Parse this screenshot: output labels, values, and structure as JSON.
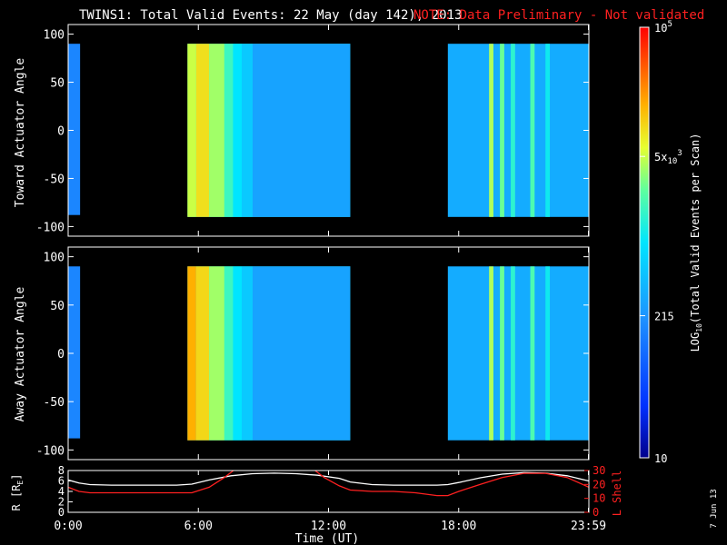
{
  "header": {
    "title": "TWINS1: Total Valid Events: 22 May (day 142), 2013",
    "note": "NOTE: Data Preliminary - Not validated"
  },
  "footer": {
    "date_stamp": "7 Jun 13"
  },
  "colors": {
    "background": "#000000",
    "axes": "#ffffff",
    "note": "#ff2020",
    "r_line": "#ffffff",
    "lshell_line": "#ff2020"
  },
  "chart_data": [
    {
      "type": "heatmap",
      "id": "toward",
      "ylabel": "Toward Actuator Angle",
      "ylim": [
        -110,
        110
      ],
      "yticks": [
        100,
        50,
        0,
        -50,
        -100
      ],
      "x_range_hours": [
        0,
        24
      ],
      "data_angle_range": [
        -90,
        90
      ],
      "blocks": [
        {
          "start": 0.0,
          "end": 0.55,
          "angle_min": -88,
          "angle_max": 90,
          "level": 0.3
        },
        {
          "start": 5.5,
          "end": 13.0,
          "angle_min": -90,
          "angle_max": 90,
          "level": 0.55
        },
        {
          "start": 17.5,
          "end": 24.0,
          "angle_min": -90,
          "angle_max": 90,
          "level": 0.38
        }
      ],
      "stripes": [
        {
          "start": 5.5,
          "end": 5.9,
          "level": 0.7
        },
        {
          "start": 5.9,
          "end": 6.5,
          "level": 0.76
        },
        {
          "start": 6.5,
          "end": 7.2,
          "level": 0.67
        },
        {
          "start": 7.2,
          "end": 7.6,
          "level": 0.58
        },
        {
          "start": 7.6,
          "end": 8.0,
          "level": 0.5
        },
        {
          "start": 8.0,
          "end": 8.5,
          "level": 0.44
        },
        {
          "start": 8.5,
          "end": 13.0,
          "level": 0.36
        },
        {
          "start": 19.4,
          "end": 19.6,
          "level": 0.68
        },
        {
          "start": 19.9,
          "end": 20.1,
          "level": 0.63
        },
        {
          "start": 20.4,
          "end": 20.6,
          "level": 0.56
        },
        {
          "start": 21.3,
          "end": 21.5,
          "level": 0.6
        },
        {
          "start": 22.0,
          "end": 22.2,
          "level": 0.52
        }
      ]
    },
    {
      "type": "heatmap",
      "id": "away",
      "ylabel": "Away Actuator Angle",
      "ylim": [
        -110,
        110
      ],
      "yticks": [
        100,
        50,
        0,
        -50,
        -100
      ],
      "x_range_hours": [
        0,
        24
      ],
      "data_angle_range": [
        -90,
        90
      ],
      "blocks": [
        {
          "start": 0.0,
          "end": 0.55,
          "angle_min": -88,
          "angle_max": 90,
          "level": 0.3
        },
        {
          "start": 5.5,
          "end": 13.0,
          "angle_min": -90,
          "angle_max": 90,
          "level": 0.55
        },
        {
          "start": 17.5,
          "end": 24.0,
          "angle_min": -90,
          "angle_max": 90,
          "level": 0.38
        }
      ],
      "stripes": [
        {
          "start": 5.5,
          "end": 5.9,
          "level": 0.82
        },
        {
          "start": 5.9,
          "end": 6.5,
          "level": 0.77
        },
        {
          "start": 6.5,
          "end": 7.2,
          "level": 0.67
        },
        {
          "start": 7.2,
          "end": 7.6,
          "level": 0.58
        },
        {
          "start": 7.6,
          "end": 8.0,
          "level": 0.5
        },
        {
          "start": 8.0,
          "end": 8.5,
          "level": 0.44
        },
        {
          "start": 8.5,
          "end": 13.0,
          "level": 0.36
        },
        {
          "start": 19.4,
          "end": 19.6,
          "level": 0.68
        },
        {
          "start": 19.9,
          "end": 20.1,
          "level": 0.63
        },
        {
          "start": 20.4,
          "end": 20.6,
          "level": 0.56
        },
        {
          "start": 21.3,
          "end": 21.5,
          "level": 0.6
        },
        {
          "start": 22.0,
          "end": 22.2,
          "level": 0.52
        }
      ]
    },
    {
      "type": "line",
      "id": "orbit",
      "xlabel": "Time (UT)",
      "xticks": [
        "0:00",
        "6:00",
        "12:00",
        "18:00",
        "23:59"
      ],
      "xtick_hours": [
        0,
        6,
        12,
        18,
        23.98
      ],
      "ylabel_left": "R [R",
      "ylabel_left_sub": "E",
      "ylabel_left_end": "]",
      "ylim_left": [
        0,
        8
      ],
      "yticks_left": [
        8,
        6,
        4,
        2,
        0
      ],
      "ylabel_right": "L Shell",
      "ylim_right": [
        0,
        30
      ],
      "yticks_right": [
        30,
        20,
        10,
        0
      ],
      "series": [
        {
          "axis": "left",
          "color": "#ffffff",
          "x": [
            0,
            0.5,
            1,
            2,
            3,
            4,
            5,
            5.7,
            6.5,
            7.5,
            8.5,
            9.5,
            10.5,
            11.5,
            12.5,
            13,
            14,
            15,
            16,
            17,
            17.5,
            18,
            19,
            20,
            21,
            22,
            23,
            24
          ],
          "y": [
            6.2,
            5.6,
            5.3,
            5.2,
            5.2,
            5.2,
            5.2,
            5.4,
            6.2,
            7.0,
            7.4,
            7.5,
            7.4,
            7.1,
            6.5,
            5.8,
            5.3,
            5.2,
            5.2,
            5.2,
            5.3,
            5.7,
            6.6,
            7.3,
            7.6,
            7.5,
            7.0,
            6.0
          ]
        },
        {
          "axis": "right",
          "color": "#ff2020",
          "segments": [
            {
              "x": [
                0,
                0.5,
                1,
                2,
                3,
                4,
                5,
                5.7,
                6.5,
                7.2,
                7.7
              ],
              "y": [
                18,
                15,
                14,
                14,
                14,
                14,
                14,
                14,
                18,
                25,
                31
              ]
            },
            {
              "x": [
                11.3,
                11.8,
                12.5,
                13,
                14,
                15,
                16,
                17,
                17.5,
                18,
                19,
                20,
                21,
                22,
                23,
                24
              ],
              "y": [
                31,
                25,
                19,
                16,
                15,
                15,
                14,
                12,
                12,
                15,
                20,
                25,
                28,
                28,
                25,
                18
              ]
            }
          ]
        }
      ]
    }
  ],
  "colorbar": {
    "label_main": "LOG",
    "label_sub": "10",
    "label_rest": "(Total Valid Events per Scan)",
    "tick_labels": [
      {
        "base": "10",
        "exp": "5",
        "frac": 1.0
      },
      {
        "base": "5x",
        "base2": "10",
        "exp": "3",
        "frac": 0.7
      },
      {
        "base": "215",
        "frac": 0.33
      },
      {
        "base": "10",
        "frac": 0.0
      }
    ]
  }
}
